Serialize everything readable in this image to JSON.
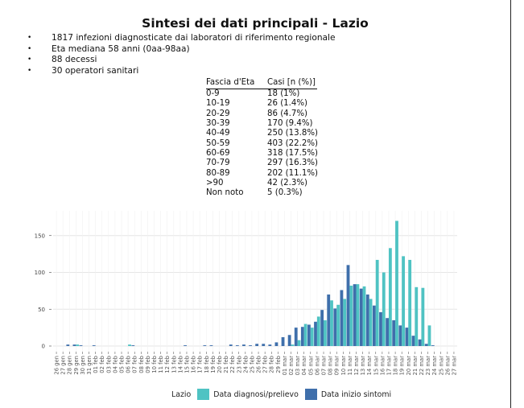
{
  "title": "Sintesi dei dati principali - Lazio",
  "bullets": [
    "1817 infezioni diagnosticate dai laboratori di riferimento regionale",
    "Eta mediana 58 anni (0aa-98aa)",
    "88 decessi",
    "30 operatori sanitari"
  ],
  "age_table": {
    "headers": [
      "Fascia d'Eta",
      "Casi [n (%)]"
    ],
    "rows": [
      [
        "0-9",
        "18 (1%)"
      ],
      [
        "10-19",
        "26 (1.4%)"
      ],
      [
        "20-29",
        "86 (4.7%)"
      ],
      [
        "30-39",
        "170 (9.4%)"
      ],
      [
        "40-49",
        "250 (13.8%)"
      ],
      [
        "50-59",
        "403 (22.2%)"
      ],
      [
        "60-69",
        "318 (17.5%)"
      ],
      [
        "70-79",
        "297 (16.3%)"
      ],
      [
        "80-89",
        "202 (11.1%)"
      ],
      [
        ">90",
        "42 (2.3%)"
      ],
      [
        "Non noto",
        "5 (0.3%)"
      ]
    ]
  },
  "legend": {
    "title": "Lazio",
    "items": [
      "Data diagnosi/prelievo",
      "Data inizio sintomi"
    ]
  },
  "colors": {
    "diagnosi": "#4fc3c3",
    "sintomi": "#3f6fab",
    "grid": "#e6e6e6"
  },
  "chart_data": {
    "type": "bar",
    "categories": [
      "26 gen",
      "27 gen",
      "28 gen",
      "29 gen",
      "30 gen",
      "31 gen",
      "01 feb",
      "02 feb",
      "03 feb",
      "04 feb",
      "05 feb",
      "06 feb",
      "07 feb",
      "08 feb",
      "09 feb",
      "10 feb",
      "11 feb",
      "12 feb",
      "13 feb",
      "14 feb",
      "15 feb",
      "16 feb",
      "17 feb",
      "18 feb",
      "19 feb",
      "20 feb",
      "21 feb",
      "22 feb",
      "23 feb",
      "24 feb",
      "25 feb",
      "26 feb",
      "27 feb",
      "28 feb",
      "29 feb",
      "01 mar",
      "02 mar",
      "03 mar",
      "04 mar",
      "05 mar",
      "06 mar",
      "07 mar",
      "08 mar",
      "09 mar",
      "10 mar",
      "11 mar",
      "12 mar",
      "13 mar",
      "14 mar",
      "15 mar",
      "16 mar",
      "17 mar",
      "18 mar",
      "19 mar",
      "20 mar",
      "21 mar",
      "22 mar",
      "23 mar",
      "24 mar",
      "25 mar",
      "26 mar",
      "27 mar"
    ],
    "series": [
      {
        "name": "Data inizio sintomi",
        "values": [
          0,
          0,
          2,
          2,
          1,
          0,
          1,
          0,
          0,
          0,
          0,
          0,
          1,
          0,
          0,
          0,
          0,
          0,
          0,
          0,
          1,
          0,
          0,
          1,
          1,
          0,
          0,
          2,
          1,
          2,
          1,
          3,
          3,
          2,
          5,
          12,
          15,
          25,
          26,
          29,
          33,
          49,
          70,
          51,
          76,
          110,
          84,
          78,
          70,
          55,
          46,
          38,
          35,
          28,
          25,
          14,
          9,
          3,
          1,
          0,
          0,
          0
        ]
      },
      {
        "name": "Data diagnosi/prelievo",
        "values": [
          0,
          0,
          0,
          2,
          0,
          0,
          0,
          0,
          0,
          0,
          0,
          2,
          0,
          0,
          0,
          0,
          0,
          0,
          0,
          0,
          0,
          0,
          0,
          0,
          0,
          0,
          0,
          0,
          0,
          0,
          0,
          0,
          0,
          0,
          0,
          0,
          2,
          8,
          30,
          25,
          40,
          35,
          62,
          56,
          64,
          82,
          84,
          81,
          64,
          117,
          100,
          133,
          170,
          122,
          117,
          80,
          79,
          28,
          0,
          0,
          0,
          0
        ]
      }
    ],
    "y_ticks": [
      "0",
      "50",
      "100",
      "150"
    ],
    "ylim": [
      0,
      185
    ],
    "grid": true,
    "legend_position": "bottom"
  }
}
